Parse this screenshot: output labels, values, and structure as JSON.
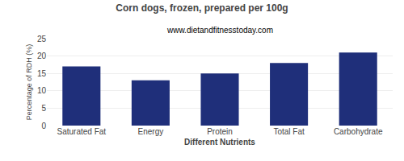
{
  "chart_data": {
    "type": "bar",
    "title": "Corn dogs, frozen, prepared per 100g",
    "subtitle": "www.dietandfitnesstoday.com",
    "xlabel": "Different Nutrients",
    "ylabel": "Percentage of RDH (%)",
    "categories": [
      "Saturated Fat",
      "Energy",
      "Protein",
      "Total Fat",
      "Carbohydrate"
    ],
    "values": [
      17,
      13,
      15,
      18,
      21
    ],
    "color": "#1f2f7a",
    "ylim": [
      0,
      25
    ],
    "yticks": [
      0,
      5,
      10,
      15,
      20,
      25
    ],
    "grid": true
  }
}
